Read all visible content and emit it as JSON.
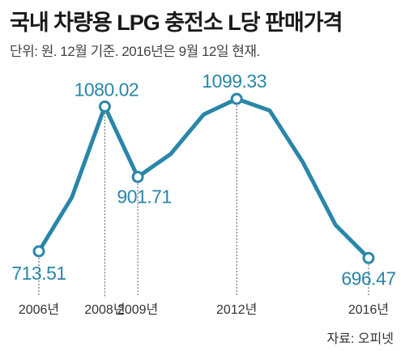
{
  "title": "국내 차량용 LPG 충전소 L당 판매가격",
  "subtitle": "단위: 원. 12월 기준. 2016년은 9월 12일 현재.",
  "source": "자료: 오피넷",
  "colors": {
    "line": "#2a86a9",
    "label": "#2a86a9",
    "axis_text": "#333333",
    "guide": "#555555"
  },
  "chart_data": {
    "type": "line",
    "title": "국내 차량용 LPG 충전소 L당 판매가격",
    "xlabel": "",
    "ylabel": "",
    "ylim": [
      650,
      1150
    ],
    "grid": false,
    "series": [
      {
        "points": [
          {
            "x": 2006.0,
            "y": 713.51
          },
          {
            "x": 2007.0,
            "y": 850
          },
          {
            "x": 2008.0,
            "y": 1080.02
          },
          {
            "x": 2009.0,
            "y": 901.71
          },
          {
            "x": 2010.0,
            "y": 960
          },
          {
            "x": 2011.0,
            "y": 1060
          },
          {
            "x": 2012.0,
            "y": 1099.33
          },
          {
            "x": 2013.0,
            "y": 1070
          },
          {
            "x": 2014.0,
            "y": 940
          },
          {
            "x": 2015.0,
            "y": 780
          },
          {
            "x": 2016.0,
            "y": 696.47
          }
        ]
      }
    ],
    "labeled_points": [
      {
        "x": 2006.0,
        "y": 713.51,
        "label": "713.51",
        "tick": "2006년"
      },
      {
        "x": 2008.0,
        "y": 1080.02,
        "label": "1080.02",
        "tick": "2008년"
      },
      {
        "x": 2009.0,
        "y": 901.71,
        "label": "901.71",
        "tick": "2009년"
      },
      {
        "x": 2012.0,
        "y": 1099.33,
        "label": "1099.33",
        "tick": "2012년"
      },
      {
        "x": 2016.0,
        "y": 696.47,
        "label": "696.47",
        "tick": "2016년"
      }
    ]
  }
}
